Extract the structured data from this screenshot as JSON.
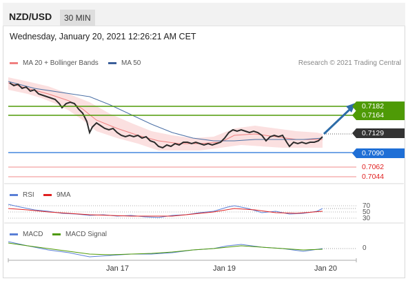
{
  "header": {
    "pair": "NZD/USD",
    "timeframe": "30 MIN"
  },
  "datetime": "Wednesday, January 20, 2021 12:26:21 AM CET",
  "legend": {
    "ma_bb": "MA 20 + Bollinger Bands",
    "ma50": "MA 50",
    "research": "Research © 2021 Trading Central",
    "rsi": "RSI",
    "rsi_ma": "9MA",
    "macd": "MACD",
    "macd_signal": "MACD Signal"
  },
  "levels": {
    "r2": "0.7182",
    "r1": "0.7164",
    "current": "0.7129",
    "pivot": "0.7090",
    "s1": "0.7062",
    "s2": "0.7044"
  },
  "rsi_levels": {
    "high": "70",
    "mid": "50",
    "low": "30"
  },
  "macd_zero": "0",
  "xaxis": {
    "d1": "Jan 17",
    "d2": "Jan 19",
    "d3": "Jan 20"
  },
  "colors": {
    "green": "#4e9a06",
    "blue": "#1f6fd6",
    "red": "#e02020",
    "dark": "#333333",
    "bb_fill": "#f9d6d6",
    "ma50": "#4a6fa5"
  },
  "chart_data": {
    "type": "line",
    "ma50_price_estimates": [
      0.718,
      0.717,
      0.7155,
      0.714,
      0.7125,
      0.7118,
      0.7116,
      0.712,
      0.7125,
      0.7127
    ]
  }
}
